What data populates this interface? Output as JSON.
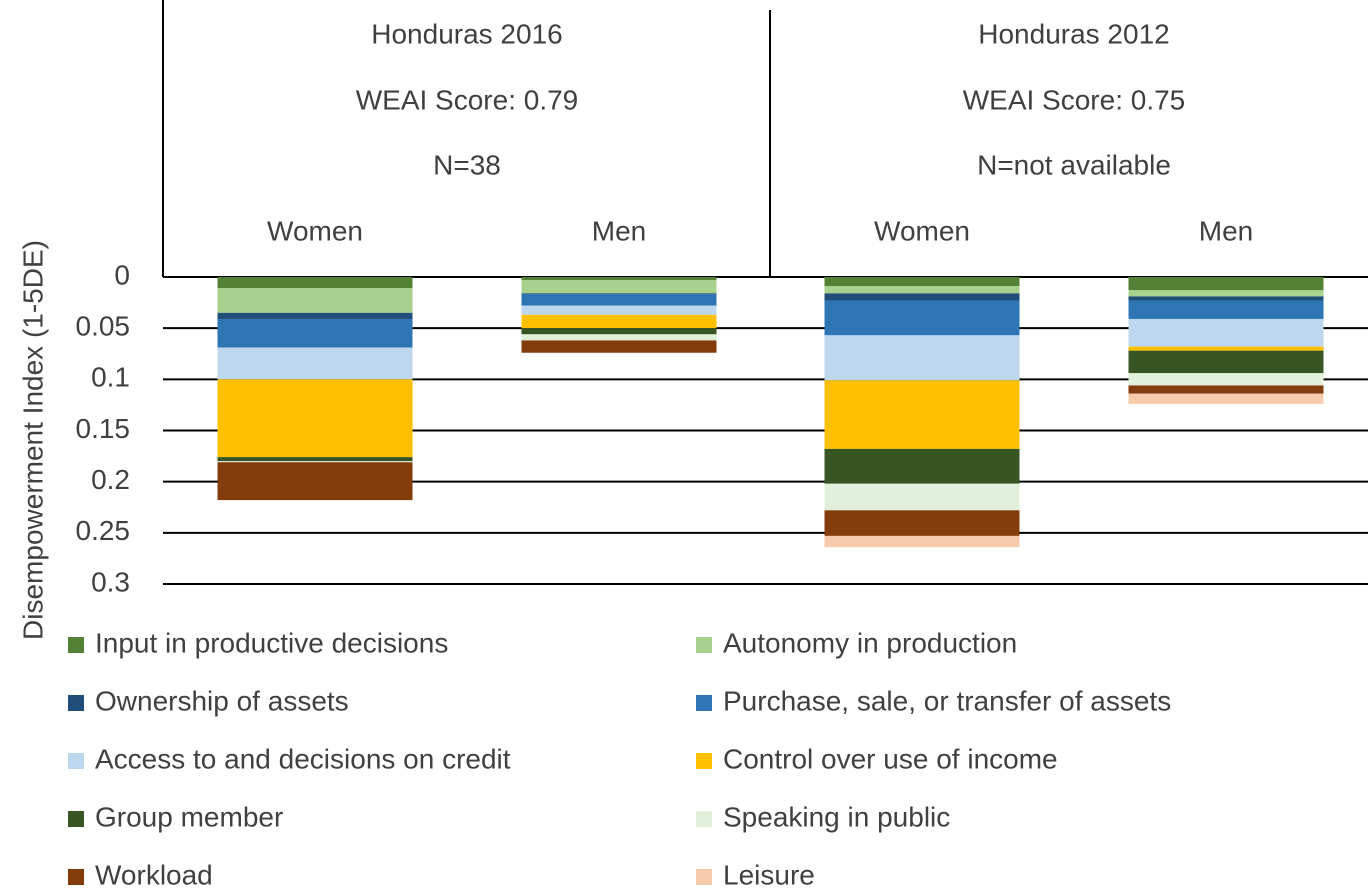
{
  "chart_data": {
    "type": "stacked_bar",
    "y_label": "Disempowerment Index (1-5DE)",
    "groups": [
      {
        "title": "Honduras 2016",
        "score": "WEAI Score: 0.79",
        "n": "N=38"
      },
      {
        "title": "Honduras 2012",
        "score": "WEAI Score: 0.75",
        "n": "N=not available"
      }
    ],
    "categories": [
      "Women",
      "Men",
      "Women",
      "Men"
    ],
    "ylim": [
      0,
      0.3
    ],
    "yticks": [
      0,
      0.05,
      0.1,
      0.15,
      0.2,
      0.25,
      0.3
    ],
    "inverted": true,
    "grid": true,
    "series": [
      {
        "name": "Input in productive decisions",
        "color": "#548235",
        "values": [
          0.011,
          0.003,
          0.009,
          0.013
        ]
      },
      {
        "name": "Autonomy in production",
        "color": "#a9d18e",
        "values": [
          0.024,
          0.013,
          0.007,
          0.006
        ]
      },
      {
        "name": "Ownership of assets",
        "color": "#1f4e79",
        "values": [
          0.006,
          0.001,
          0.007,
          0.004
        ]
      },
      {
        "name": "Purchase, sale, or transfer of assets",
        "color": "#2e75b6",
        "values": [
          0.028,
          0.011,
          0.034,
          0.018
        ]
      },
      {
        "name": "Access to and decisions on credit",
        "color": "#bdd7ee",
        "values": [
          0.031,
          0.009,
          0.044,
          0.027
        ]
      },
      {
        "name": "Control over use of income",
        "color": "#ffc000",
        "values": [
          0.076,
          0.013,
          0.067,
          0.004
        ]
      },
      {
        "name": "Group member",
        "color": "#375623",
        "values": [
          0.004,
          0.006,
          0.034,
          0.022
        ]
      },
      {
        "name": "Speaking in public",
        "color": "#e2efda",
        "values": [
          0.001,
          0.006,
          0.026,
          0.012
        ]
      },
      {
        "name": "Workload",
        "color": "#843c0c",
        "values": [
          0.037,
          0.012,
          0.025,
          0.008
        ]
      },
      {
        "name": "Leisure",
        "color": "#f8cbad",
        "values": [
          0,
          0,
          0.011,
          0.01
        ]
      }
    ]
  }
}
